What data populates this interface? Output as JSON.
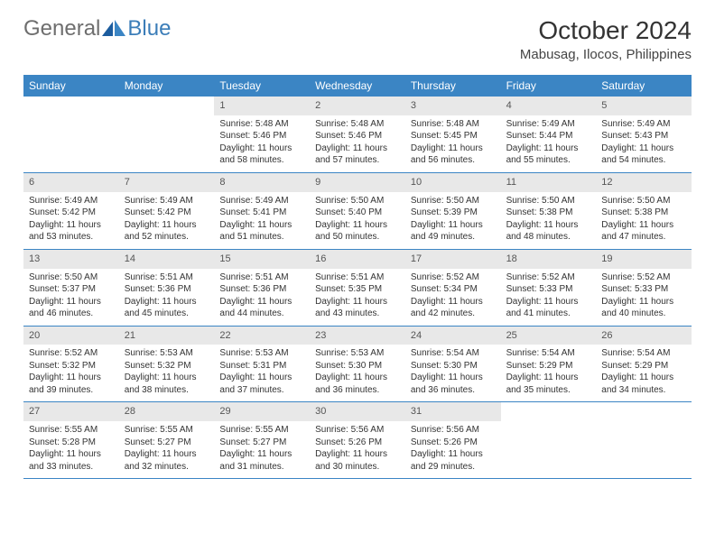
{
  "logo": {
    "text1": "General",
    "text2": "Blue"
  },
  "title": "October 2024",
  "location": "Mabusag, Ilocos, Philippines",
  "colors": {
    "header_bg": "#3b85c4",
    "header_text": "#ffffff",
    "daynum_bg": "#e8e8e8",
    "logo_gray": "#6e6e6e",
    "logo_blue": "#3b7db8"
  },
  "day_names": [
    "Sunday",
    "Monday",
    "Tuesday",
    "Wednesday",
    "Thursday",
    "Friday",
    "Saturday"
  ],
  "weeks": [
    [
      null,
      null,
      {
        "n": "1",
        "sr": "Sunrise: 5:48 AM",
        "ss": "Sunset: 5:46 PM",
        "dl": "Daylight: 11 hours and 58 minutes."
      },
      {
        "n": "2",
        "sr": "Sunrise: 5:48 AM",
        "ss": "Sunset: 5:46 PM",
        "dl": "Daylight: 11 hours and 57 minutes."
      },
      {
        "n": "3",
        "sr": "Sunrise: 5:48 AM",
        "ss": "Sunset: 5:45 PM",
        "dl": "Daylight: 11 hours and 56 minutes."
      },
      {
        "n": "4",
        "sr": "Sunrise: 5:49 AM",
        "ss": "Sunset: 5:44 PM",
        "dl": "Daylight: 11 hours and 55 minutes."
      },
      {
        "n": "5",
        "sr": "Sunrise: 5:49 AM",
        "ss": "Sunset: 5:43 PM",
        "dl": "Daylight: 11 hours and 54 minutes."
      }
    ],
    [
      {
        "n": "6",
        "sr": "Sunrise: 5:49 AM",
        "ss": "Sunset: 5:42 PM",
        "dl": "Daylight: 11 hours and 53 minutes."
      },
      {
        "n": "7",
        "sr": "Sunrise: 5:49 AM",
        "ss": "Sunset: 5:42 PM",
        "dl": "Daylight: 11 hours and 52 minutes."
      },
      {
        "n": "8",
        "sr": "Sunrise: 5:49 AM",
        "ss": "Sunset: 5:41 PM",
        "dl": "Daylight: 11 hours and 51 minutes."
      },
      {
        "n": "9",
        "sr": "Sunrise: 5:50 AM",
        "ss": "Sunset: 5:40 PM",
        "dl": "Daylight: 11 hours and 50 minutes."
      },
      {
        "n": "10",
        "sr": "Sunrise: 5:50 AM",
        "ss": "Sunset: 5:39 PM",
        "dl": "Daylight: 11 hours and 49 minutes."
      },
      {
        "n": "11",
        "sr": "Sunrise: 5:50 AM",
        "ss": "Sunset: 5:38 PM",
        "dl": "Daylight: 11 hours and 48 minutes."
      },
      {
        "n": "12",
        "sr": "Sunrise: 5:50 AM",
        "ss": "Sunset: 5:38 PM",
        "dl": "Daylight: 11 hours and 47 minutes."
      }
    ],
    [
      {
        "n": "13",
        "sr": "Sunrise: 5:50 AM",
        "ss": "Sunset: 5:37 PM",
        "dl": "Daylight: 11 hours and 46 minutes."
      },
      {
        "n": "14",
        "sr": "Sunrise: 5:51 AM",
        "ss": "Sunset: 5:36 PM",
        "dl": "Daylight: 11 hours and 45 minutes."
      },
      {
        "n": "15",
        "sr": "Sunrise: 5:51 AM",
        "ss": "Sunset: 5:36 PM",
        "dl": "Daylight: 11 hours and 44 minutes."
      },
      {
        "n": "16",
        "sr": "Sunrise: 5:51 AM",
        "ss": "Sunset: 5:35 PM",
        "dl": "Daylight: 11 hours and 43 minutes."
      },
      {
        "n": "17",
        "sr": "Sunrise: 5:52 AM",
        "ss": "Sunset: 5:34 PM",
        "dl": "Daylight: 11 hours and 42 minutes."
      },
      {
        "n": "18",
        "sr": "Sunrise: 5:52 AM",
        "ss": "Sunset: 5:33 PM",
        "dl": "Daylight: 11 hours and 41 minutes."
      },
      {
        "n": "19",
        "sr": "Sunrise: 5:52 AM",
        "ss": "Sunset: 5:33 PM",
        "dl": "Daylight: 11 hours and 40 minutes."
      }
    ],
    [
      {
        "n": "20",
        "sr": "Sunrise: 5:52 AM",
        "ss": "Sunset: 5:32 PM",
        "dl": "Daylight: 11 hours and 39 minutes."
      },
      {
        "n": "21",
        "sr": "Sunrise: 5:53 AM",
        "ss": "Sunset: 5:32 PM",
        "dl": "Daylight: 11 hours and 38 minutes."
      },
      {
        "n": "22",
        "sr": "Sunrise: 5:53 AM",
        "ss": "Sunset: 5:31 PM",
        "dl": "Daylight: 11 hours and 37 minutes."
      },
      {
        "n": "23",
        "sr": "Sunrise: 5:53 AM",
        "ss": "Sunset: 5:30 PM",
        "dl": "Daylight: 11 hours and 36 minutes."
      },
      {
        "n": "24",
        "sr": "Sunrise: 5:54 AM",
        "ss": "Sunset: 5:30 PM",
        "dl": "Daylight: 11 hours and 36 minutes."
      },
      {
        "n": "25",
        "sr": "Sunrise: 5:54 AM",
        "ss": "Sunset: 5:29 PM",
        "dl": "Daylight: 11 hours and 35 minutes."
      },
      {
        "n": "26",
        "sr": "Sunrise: 5:54 AM",
        "ss": "Sunset: 5:29 PM",
        "dl": "Daylight: 11 hours and 34 minutes."
      }
    ],
    [
      {
        "n": "27",
        "sr": "Sunrise: 5:55 AM",
        "ss": "Sunset: 5:28 PM",
        "dl": "Daylight: 11 hours and 33 minutes."
      },
      {
        "n": "28",
        "sr": "Sunrise: 5:55 AM",
        "ss": "Sunset: 5:27 PM",
        "dl": "Daylight: 11 hours and 32 minutes."
      },
      {
        "n": "29",
        "sr": "Sunrise: 5:55 AM",
        "ss": "Sunset: 5:27 PM",
        "dl": "Daylight: 11 hours and 31 minutes."
      },
      {
        "n": "30",
        "sr": "Sunrise: 5:56 AM",
        "ss": "Sunset: 5:26 PM",
        "dl": "Daylight: 11 hours and 30 minutes."
      },
      {
        "n": "31",
        "sr": "Sunrise: 5:56 AM",
        "ss": "Sunset: 5:26 PM",
        "dl": "Daylight: 11 hours and 29 minutes."
      },
      null,
      null
    ]
  ]
}
